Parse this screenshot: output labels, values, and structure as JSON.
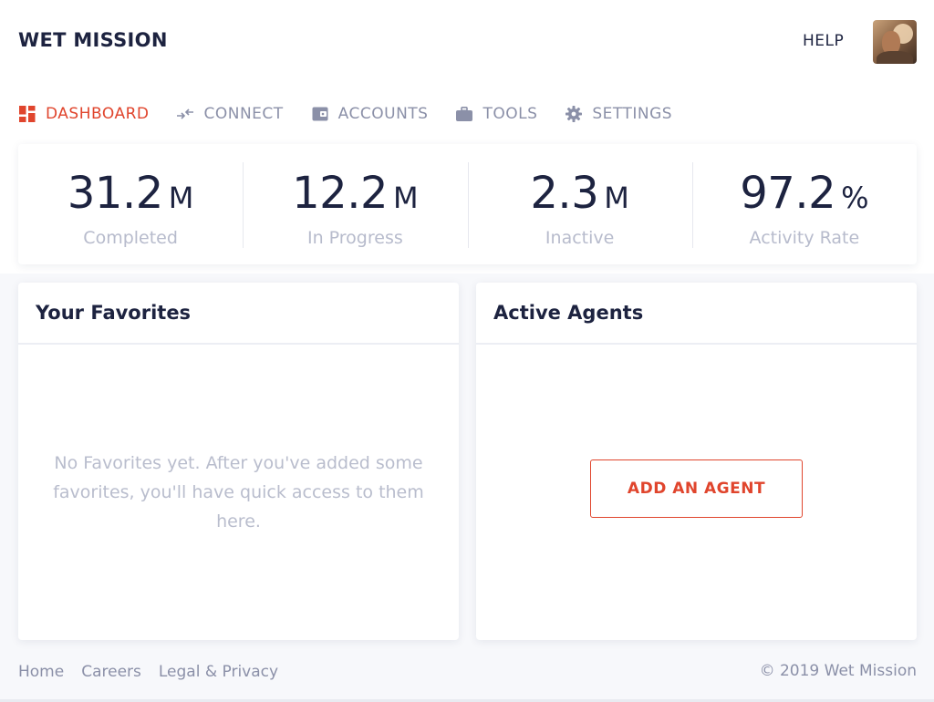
{
  "header": {
    "brand": "WET MISSION",
    "help_label": "HELP",
    "avatar_icon": "user-avatar-photo"
  },
  "nav": {
    "items": [
      {
        "label": "DASHBOARD",
        "icon": "dashboard-icon",
        "active": true
      },
      {
        "label": "CONNECT",
        "icon": "connect-arrows-icon",
        "active": false
      },
      {
        "label": "ACCOUNTS",
        "icon": "wallet-icon",
        "active": false
      },
      {
        "label": "TOOLS",
        "icon": "briefcase-icon",
        "active": false
      },
      {
        "label": "SETTINGS",
        "icon": "gear-icon",
        "active": false
      }
    ]
  },
  "stats": [
    {
      "value": "31.2",
      "unit": "M",
      "label": "Completed"
    },
    {
      "value": "12.2",
      "unit": "M",
      "label": "In Progress"
    },
    {
      "value": "2.3",
      "unit": "M",
      "label": "Inactive"
    },
    {
      "value": "97.2",
      "unit": "%",
      "label": "Activity Rate"
    }
  ],
  "favorites": {
    "title": "Your Favorites",
    "empty_text": "No Favorites yet. After you've added some favorites, you'll have quick access to them here."
  },
  "agents": {
    "title": "Active Agents",
    "add_button": "ADD AN AGENT"
  },
  "footer": {
    "links": [
      "Home",
      "Careers",
      "Legal & Privacy"
    ],
    "copyright": "© 2019 Wet Mission"
  },
  "colors": {
    "accent": "#e0452d",
    "text_dark": "#1d2340",
    "text_muted": "#8b90a8",
    "background": "#f7f8fb"
  }
}
